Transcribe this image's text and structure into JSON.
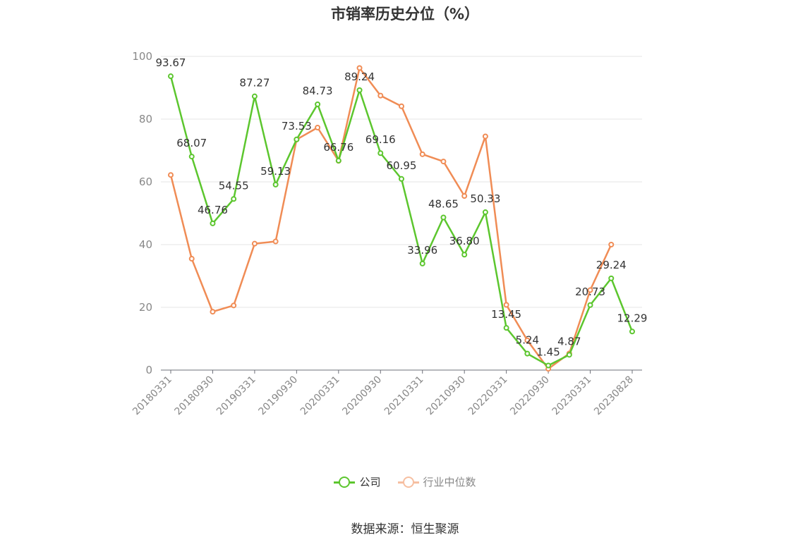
{
  "chart_data": {
    "type": "line",
    "title": "市销率历史分位（%）",
    "x": [
      "20180331",
      "20180630",
      "20180930",
      "20181231",
      "20190331",
      "20190630",
      "20190930",
      "20191231",
      "20200331",
      "20200630",
      "20200930",
      "20201231",
      "20210331",
      "20210630",
      "20210930",
      "20211231",
      "20220331",
      "20220630",
      "20220930",
      "20221231",
      "20230331",
      "20230630",
      "20230828"
    ],
    "x_tick_labels": [
      "20180331",
      "20180930",
      "20190331",
      "20190930",
      "20200331",
      "20200930",
      "20210331",
      "20210930",
      "20220331",
      "20220930",
      "20230331",
      "20230828"
    ],
    "y_ticks": [
      0,
      20,
      40,
      60,
      80,
      100
    ],
    "ylim": [
      0,
      100
    ],
    "grid": true,
    "legend_position": "bottom",
    "series": [
      {
        "name": "公司",
        "color": "#5cc62e",
        "values": [
          93.67,
          68.07,
          46.76,
          54.55,
          87.27,
          59.13,
          73.53,
          84.73,
          66.76,
          89.24,
          69.16,
          60.95,
          33.96,
          48.65,
          36.8,
          50.33,
          13.45,
          5.24,
          1.45,
          4.87,
          20.73,
          29.24,
          12.29
        ],
        "labels": [
          "93.67",
          "68.07",
          "46.76",
          "54.55",
          "87.27",
          "59.13",
          "73.53",
          "84.73",
          "66.76",
          "89.24",
          "69.16",
          "60.95",
          "33.96",
          "48.65",
          "36.80",
          "50.33",
          "13.45",
          "5.24",
          "1.45",
          "4.87",
          "20.73",
          "29.24",
          "12.29"
        ]
      },
      {
        "name": "行业中位数",
        "color": "#f08c55",
        "values": [
          62.2,
          35.5,
          18.6,
          20.6,
          40.3,
          41.0,
          73.5,
          77.3,
          66.7,
          96.3,
          87.5,
          84.1,
          68.8,
          66.5,
          55.5,
          74.5,
          20.8,
          9.5,
          0.4,
          5.3,
          25.5,
          40.0,
          null
        ]
      }
    ]
  },
  "legend": {
    "company_label": "公司",
    "industry_label": "行业中位数",
    "company_color": "#5cc62e",
    "industry_color": "#f08c55"
  },
  "source_text": "数据来源：恒生聚源"
}
